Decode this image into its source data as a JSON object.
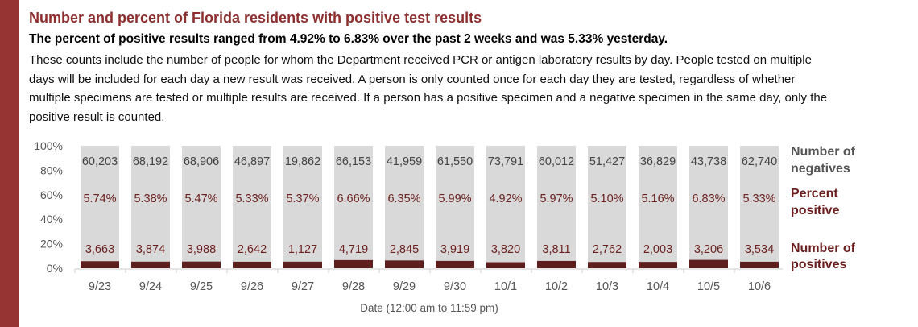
{
  "title": "Number and percent of Florida residents with positive test results",
  "subtitle": "The percent of positive results ranged from 4.92% to 6.83% over the past 2 weeks and was 5.33% yesterday.",
  "description": "These counts include the number of people for whom the Department received PCR or antigen laboratory results by day. People tested on multiple days will be included for each day a new result was received. A person is only counted once for each day they are tested, regardless of whether multiple specimens are tested or multiple results are received. If a person has a positive specimen and a negative specimen in the same day, only the positive result is counted.",
  "chart_data": {
    "type": "bar",
    "stacked": true,
    "categories": [
      "9/23",
      "9/24",
      "9/25",
      "9/26",
      "9/27",
      "9/28",
      "9/29",
      "9/30",
      "10/1",
      "10/2",
      "10/3",
      "10/4",
      "10/5",
      "10/6"
    ],
    "series": [
      {
        "name": "Number of negatives",
        "labels": [
          "60,203",
          "68,192",
          "68,906",
          "46,897",
          "19,862",
          "66,153",
          "41,959",
          "61,550",
          "73,791",
          "60,012",
          "51,427",
          "36,829",
          "43,738",
          "62,740"
        ],
        "color": "#d9d9d9"
      },
      {
        "name": "Percent positive",
        "labels": [
          "5.74%",
          "5.38%",
          "5.47%",
          "5.33%",
          "5.37%",
          "6.66%",
          "6.35%",
          "5.99%",
          "4.92%",
          "5.97%",
          "5.10%",
          "5.16%",
          "6.83%",
          "5.33%"
        ],
        "values": [
          5.74,
          5.38,
          5.47,
          5.33,
          5.37,
          6.66,
          6.35,
          5.99,
          4.92,
          5.97,
          5.1,
          5.16,
          6.83,
          5.33
        ],
        "color": "#6b1f1f"
      },
      {
        "name": "Number of positives",
        "labels": [
          "3,663",
          "3,874",
          "3,988",
          "2,642",
          "1,127",
          "4,719",
          "2,845",
          "3,919",
          "3,820",
          "3,811",
          "2,762",
          "2,003",
          "3,206",
          "3,534"
        ],
        "color": "#5e1e1e"
      }
    ],
    "yticks": [
      "0%",
      "20%",
      "40%",
      "60%",
      "80%",
      "100%"
    ],
    "ylim": [
      0,
      100
    ],
    "xlabel": "Date (12:00 am to 11:59 pm)",
    "legend_lines": {
      "negatives": [
        "Number of",
        "negatives"
      ],
      "percent": [
        "Percent",
        "positive"
      ],
      "positives": [
        "Number of",
        "positives"
      ]
    },
    "legend_placement": "right"
  }
}
